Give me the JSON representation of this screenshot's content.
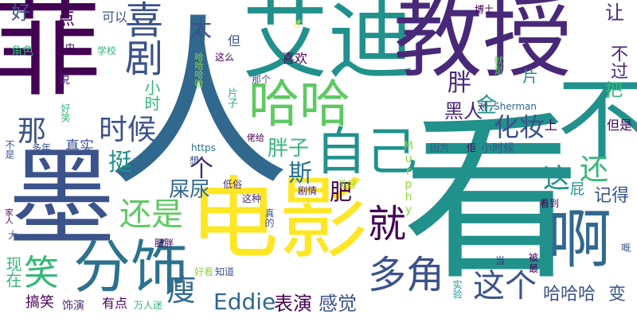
{
  "palette": {
    "dark_purple": "#440154",
    "indigo": "#3b528b",
    "blue": "#31688e",
    "teal": "#21918c",
    "green": "#35b779",
    "light_green": "#90d743",
    "yellow": "#fde725"
  },
  "words": [
    {
      "text": "菲",
      "color": "#440154"
    },
    {
      "text": "墨",
      "color": "#3b528b"
    },
    {
      "text": "人",
      "color": "#31688e"
    },
    {
      "text": "艾迪",
      "color": "#21918c"
    },
    {
      "text": "教授",
      "color": "#482878"
    },
    {
      "text": "看",
      "color": "#21918c"
    },
    {
      "text": "电影",
      "color": "#fde725"
    },
    {
      "text": "不",
      "color": "#21918c"
    },
    {
      "text": "分饰",
      "color": "#2c728e"
    },
    {
      "text": "喜剧",
      "color": "#3b528b"
    },
    {
      "text": "哈哈",
      "color": "#5ec962"
    },
    {
      "text": "自己",
      "color": "#21918c"
    },
    {
      "text": "啊",
      "color": "#31688e"
    },
    {
      "text": "就",
      "color": "#440154"
    },
    {
      "text": "多角",
      "color": "#3b528b"
    },
    {
      "text": "还是",
      "color": "#5ec962"
    },
    {
      "text": "这个",
      "color": "#3b528b"
    },
    {
      "text": "哈哈哈",
      "color": "#3b528b"
    },
    {
      "text": "化妆",
      "color": "#3b528b"
    },
    {
      "text": "胖子",
      "color": "#35b779"
    },
    {
      "text": "Eddie",
      "color": "#31688e"
    },
    {
      "text": "时候",
      "color": "#3b528b"
    },
    {
      "text": "笑",
      "color": "#35b779"
    },
    {
      "text": "黑人",
      "color": "#482878"
    },
    {
      "text": "胖",
      "color": "#482878"
    },
    {
      "text": "金",
      "color": "#21918c"
    },
    {
      "text": "斯",
      "color": "#2c728e"
    },
    {
      "text": "肥",
      "color": "#440154"
    },
    {
      "text": "那",
      "color": "#3b528b"
    },
    {
      "text": "瘦",
      "color": "#31688e"
    },
    {
      "text": "屎尿",
      "color": "#31688e"
    },
    {
      "text": "表演",
      "color": "#440154"
    },
    {
      "text": "感觉",
      "color": "#3b528b"
    },
    {
      "text": "变",
      "color": "#3b528b"
    },
    {
      "text": "还",
      "color": "#35b779"
    },
    {
      "text": "这",
      "color": "#21918c"
    },
    {
      "text": "让",
      "color": "#482878"
    },
    {
      "text": "不过",
      "color": "#482878"
    },
    {
      "text": "记得",
      "color": "#3b528b"
    },
    {
      "text": "挺",
      "color": "#21918c"
    },
    {
      "text": "个",
      "color": "#482878"
    },
    {
      "text": "太",
      "color": "#3b528b"
    },
    {
      "text": "好",
      "color": "#3b528b"
    },
    {
      "text": "点",
      "color": "#440154"
    },
    {
      "text": "小时",
      "color": "#35b779"
    },
    {
      "text": "真实",
      "color": "#3b528b"
    },
    {
      "text": "搞笑",
      "color": "#440154"
    },
    {
      "text": "现在",
      "color": "#35b779"
    },
    {
      "text": "把",
      "color": "#35b779"
    },
    {
      "text": "屁",
      "color": "#21918c"
    },
    {
      "text": "但是",
      "color": "#440154"
    },
    {
      "text": "有点",
      "color": "#440154"
    },
    {
      "text": "饰演",
      "color": "#482878"
    },
    {
      "text": "片",
      "color": "#21918c"
    },
    {
      "text": "喜欢",
      "color": "#440154"
    },
    {
      "text": "可以",
      "color": "#3b528b"
    },
    {
      "text": "角色",
      "color": "#35b779"
    },
    {
      "text": "小时候",
      "color": "#3b528b"
    },
    {
      "text": "Murphy",
      "color": "#90d743"
    },
    {
      "text": "Sherman",
      "color": "#31688e"
    },
    {
      "text": "https",
      "color": "#2c728e"
    },
    {
      "text": "博士",
      "color": "#440154"
    },
    {
      "text": "学校",
      "color": "#35b779"
    },
    {
      "text": "中",
      "color": "#440154"
    },
    {
      "text": "说",
      "color": "#482878"
    },
    {
      "text": "好笑",
      "color": "#35b779"
    },
    {
      "text": "但",
      "color": "#3b528b"
    },
    {
      "text": "这么",
      "color": "#440154"
    },
    {
      "text": "片子",
      "color": "#35b779"
    },
    {
      "text": "哈哈哈哈",
      "color": "#90d743"
    },
    {
      "text": "那个",
      "color": "#3b528b"
    },
    {
      "text": "才",
      "color": "#fde725"
    },
    {
      "text": "就是",
      "color": "#5ec962"
    },
    {
      "text": "对",
      "color": "#482878"
    },
    {
      "text": "上",
      "color": "#440154"
    },
    {
      "text": "因为",
      "color": "#3b528b"
    },
    {
      "text": "佢",
      "color": "#440154"
    },
    {
      "text": "多年",
      "color": "#3b528b"
    },
    {
      "text": "不是",
      "color": "#3b528b"
    },
    {
      "text": "想",
      "color": "#3b528b"
    },
    {
      "text": "佬给",
      "color": "#440154"
    },
    {
      "text": "低俗",
      "color": "#482878"
    },
    {
      "text": "这种",
      "color": "#482878"
    },
    {
      "text": "真的",
      "color": "#3b528b"
    },
    {
      "text": "剧情",
      "color": "#482878"
    },
    {
      "text": "美好",
      "color": "#90d743"
    },
    {
      "text": "看到",
      "color": "#440154"
    },
    {
      "text": "肥胖",
      "color": "#440154"
    },
    {
      "text": "家人",
      "color": "#440154"
    },
    {
      "text": "大",
      "color": "#3b528b"
    },
    {
      "text": "好看",
      "color": "#90d743"
    },
    {
      "text": "知道",
      "color": "#3b528b"
    },
    {
      "text": "万人迷",
      "color": "#35b779"
    },
    {
      "text": "实验",
      "color": "#21918c"
    },
    {
      "text": "当",
      "color": "#482878"
    },
    {
      "text": "被",
      "color": "#440154"
    },
    {
      "text": "最",
      "color": "#440154"
    },
    {
      "text": "嘅",
      "color": "#3b528b"
    }
  ]
}
